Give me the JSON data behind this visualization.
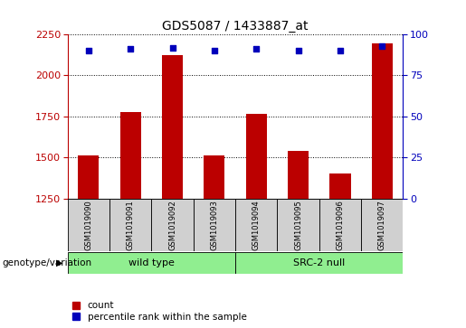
{
  "title": "GDS5087 / 1433887_at",
  "samples": [
    "GSM1019090",
    "GSM1019091",
    "GSM1019092",
    "GSM1019093",
    "GSM1019094",
    "GSM1019095",
    "GSM1019096",
    "GSM1019097"
  ],
  "counts": [
    1510,
    1775,
    2125,
    1510,
    1765,
    1540,
    1400,
    2195
  ],
  "percentiles": [
    90,
    91,
    92,
    90,
    91,
    90,
    90,
    93
  ],
  "ymin": 1250,
  "ymax": 2250,
  "pct_min": 0,
  "pct_max": 100,
  "yticks_left": [
    1250,
    1500,
    1750,
    2000,
    2250
  ],
  "yticks_right": [
    0,
    25,
    50,
    75,
    100
  ],
  "bar_color": "#bb0000",
  "dot_color": "#0000bb",
  "sample_box_color": "#d0d0d0",
  "group_color": "#90ee90",
  "legend_count": "count",
  "legend_pct": "percentile rank within the sample",
  "group_label_text": "genotype/variation",
  "bar_width": 0.5
}
